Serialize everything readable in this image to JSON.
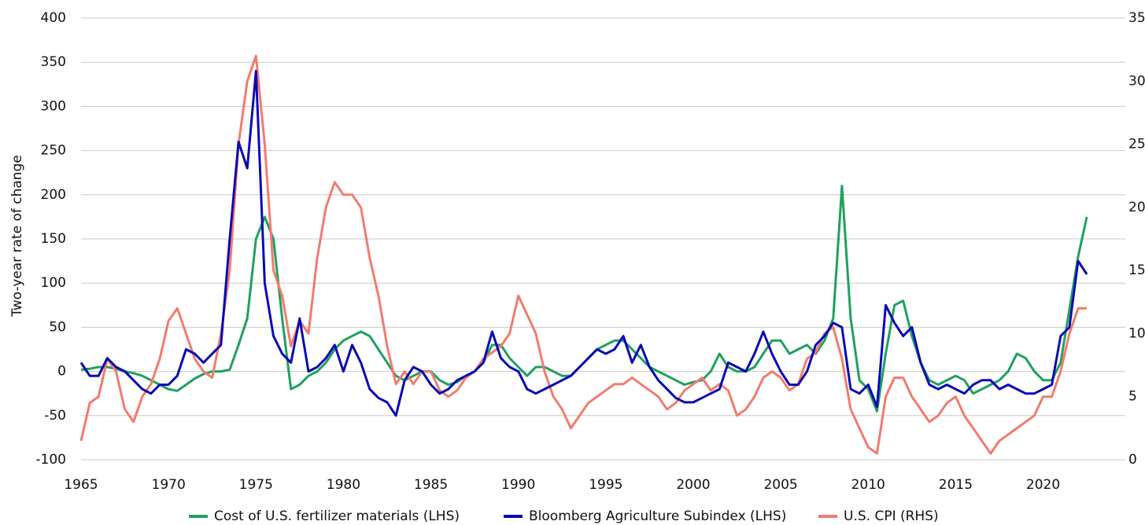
{
  "chart_data": {
    "type": "line",
    "ylabel": "Two-year rate of change",
    "x": [
      1965,
      1965.5,
      1966,
      1966.5,
      1967,
      1967.5,
      1968,
      1968.5,
      1969,
      1969.5,
      1970,
      1970.5,
      1971,
      1971.5,
      1972,
      1972.5,
      1973,
      1973.5,
      1974,
      1974.5,
      1975,
      1975.5,
      1976,
      1976.5,
      1977,
      1977.5,
      1978,
      1978.5,
      1979,
      1979.5,
      1980,
      1980.5,
      1981,
      1981.5,
      1982,
      1982.5,
      1983,
      1983.5,
      1984,
      1984.5,
      1985,
      1985.5,
      1986,
      1986.5,
      1987,
      1987.5,
      1988,
      1988.5,
      1989,
      1989.5,
      1990,
      1990.5,
      1991,
      1991.5,
      1992,
      1992.5,
      1993,
      1993.5,
      1994,
      1994.5,
      1995,
      1995.5,
      1996,
      1996.5,
      1997,
      1997.5,
      1998,
      1998.5,
      1999,
      1999.5,
      2000,
      2000.5,
      2001,
      2001.5,
      2002,
      2002.5,
      2003,
      2003.5,
      2004,
      2004.5,
      2005,
      2005.5,
      2006,
      2006.5,
      2007,
      2007.5,
      2008,
      2008.5,
      2009,
      2009.5,
      2010,
      2010.5,
      2011,
      2011.5,
      2012,
      2012.5,
      2013,
      2013.5,
      2014,
      2014.5,
      2015,
      2015.5,
      2016,
      2016.5,
      2017,
      2017.5,
      2018,
      2018.5,
      2019,
      2019.5,
      2020,
      2020.5,
      2021,
      2021.5,
      2022,
      2022.5
    ],
    "series": [
      {
        "name": "Cost of U.S. fertilizer materials (LHS)",
        "color": "#1fa15e",
        "values": [
          2,
          3,
          5,
          5,
          3,
          0,
          -2,
          -5,
          -10,
          -15,
          -20,
          -22,
          -15,
          -8,
          -3,
          0,
          0,
          2,
          30,
          60,
          150,
          175,
          150,
          60,
          -20,
          -15,
          -5,
          0,
          10,
          25,
          35,
          40,
          45,
          40,
          25,
          10,
          -5,
          -10,
          -5,
          0,
          0,
          -10,
          -15,
          -12,
          -5,
          0,
          10,
          30,
          30,
          15,
          5,
          -5,
          5,
          5,
          0,
          -5,
          -5,
          5,
          15,
          25,
          30,
          35,
          35,
          25,
          15,
          5,
          0,
          -5,
          -10,
          -15,
          -12,
          -10,
          0,
          20,
          5,
          0,
          0,
          5,
          20,
          35,
          35,
          20,
          25,
          30,
          20,
          35,
          60,
          210,
          60,
          -10,
          -20,
          -45,
          20,
          75,
          80,
          40,
          10,
          -10,
          -15,
          -10,
          -5,
          -10,
          -25,
          -20,
          -15,
          -10,
          0,
          20,
          15,
          0,
          -10,
          -10,
          10,
          70,
          130,
          175
        ]
      },
      {
        "name": "Bloomberg Agriculture Subindex (LHS)",
        "color": "#0a0ab4",
        "values": [
          10,
          -5,
          -5,
          15,
          5,
          0,
          -10,
          -20,
          -25,
          -15,
          -15,
          -5,
          25,
          20,
          10,
          20,
          30,
          150,
          260,
          230,
          340,
          100,
          40,
          20,
          10,
          60,
          0,
          5,
          15,
          30,
          0,
          30,
          10,
          -20,
          -30,
          -35,
          -50,
          -10,
          5,
          0,
          -15,
          -25,
          -20,
          -10,
          -5,
          0,
          10,
          45,
          15,
          5,
          0,
          -20,
          -25,
          -20,
          -15,
          -10,
          -5,
          5,
          15,
          25,
          20,
          25,
          40,
          10,
          30,
          5,
          -10,
          -20,
          -30,
          -35,
          -35,
          -30,
          -25,
          -20,
          10,
          5,
          0,
          20,
          45,
          20,
          0,
          -15,
          -15,
          0,
          30,
          40,
          55,
          50,
          -20,
          -25,
          -15,
          -40,
          75,
          55,
          40,
          50,
          10,
          -15,
          -20,
          -15,
          -20,
          -25,
          -15,
          -10,
          -10,
          -20,
          -15,
          -20,
          -25,
          -25,
          -20,
          -15,
          40,
          50,
          125,
          110
        ]
      },
      {
        "name": "U.S. CPI (RHS)",
        "color": "#f27b6e",
        "axis": "y2",
        "values": [
          1.5,
          4.5,
          5,
          8,
          7,
          4,
          3,
          5,
          6,
          8,
          11,
          12,
          10,
          8,
          7,
          6.5,
          10,
          15,
          25,
          30,
          32,
          25,
          15,
          13,
          9,
          11,
          10,
          16,
          20,
          22,
          21,
          21,
          20,
          16,
          13,
          9,
          6,
          7,
          6,
          7,
          7,
          5.5,
          5,
          5.5,
          6.5,
          7,
          8,
          8.5,
          9,
          10,
          13,
          11.5,
          10,
          7,
          5,
          4,
          2.5,
          3.5,
          4.5,
          5,
          5.5,
          6,
          6,
          6.5,
          6,
          5.5,
          5,
          4,
          4.5,
          5.5,
          6,
          6.5,
          5.5,
          6,
          5.5,
          3.5,
          4,
          5,
          6.5,
          7,
          6.5,
          5.5,
          6,
          8,
          8.5,
          10,
          10.5,
          8,
          4,
          2.5,
          1,
          0.5,
          5,
          6.5,
          6.5,
          5,
          4,
          3,
          3.5,
          4.5,
          5,
          3.5,
          2.5,
          1.5,
          0.5,
          1.5,
          2,
          2.5,
          3,
          3.5,
          5,
          5,
          7,
          10,
          12,
          12
        ]
      }
    ],
    "xlim": [
      1965,
      2024.7
    ],
    "xticks": [
      1965,
      1970,
      1975,
      1980,
      1985,
      1990,
      1995,
      2000,
      2005,
      2010,
      2015,
      2020
    ],
    "ylim": [
      -100,
      400
    ],
    "yticks": [
      -100,
      -50,
      0,
      50,
      100,
      150,
      200,
      250,
      300,
      350,
      400
    ],
    "y2lim": [
      0,
      35
    ],
    "y2ticks": [
      0,
      5,
      10,
      15,
      20,
      25,
      30,
      35
    ],
    "grid": true,
    "legend": "bottom"
  }
}
